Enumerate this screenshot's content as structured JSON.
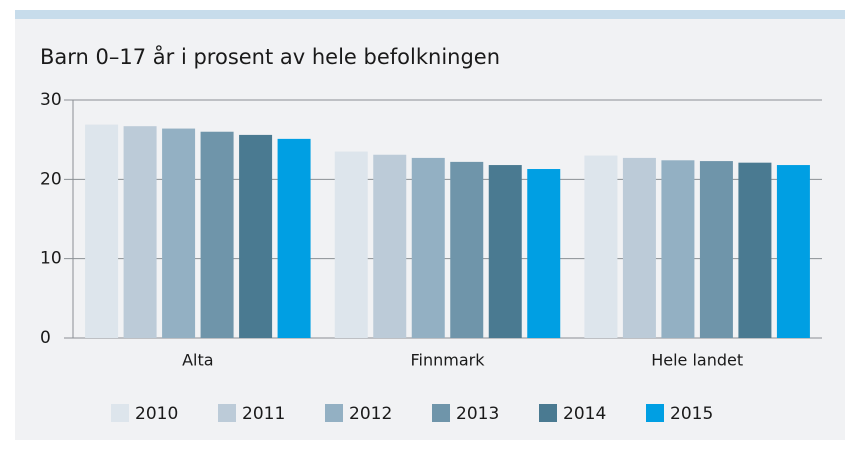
{
  "chart_data": {
    "type": "bar",
    "title": "Barn 0–17 år i prosent av hele befolkningen",
    "categories": [
      "Alta",
      "Finnmark",
      "Hele landet"
    ],
    "series": [
      {
        "name": "2010",
        "color": "#dde5ec",
        "values": [
          26.9,
          23.5,
          23.0
        ]
      },
      {
        "name": "2011",
        "color": "#bccbd8",
        "values": [
          26.7,
          23.1,
          22.7
        ]
      },
      {
        "name": "2012",
        "color": "#93b0c3",
        "values": [
          26.4,
          22.7,
          22.4
        ]
      },
      {
        "name": "2013",
        "color": "#6f95aa",
        "values": [
          26.0,
          22.2,
          22.3
        ]
      },
      {
        "name": "2014",
        "color": "#4a7a91",
        "values": [
          25.6,
          21.8,
          22.1
        ]
      },
      {
        "name": "2015",
        "color": "#009fe3",
        "values": [
          25.1,
          21.3,
          21.8
        ]
      }
    ],
    "ylim": [
      0,
      30
    ],
    "yticks": [
      0,
      10,
      20,
      30
    ],
    "grid": true,
    "legend": "bottom"
  }
}
